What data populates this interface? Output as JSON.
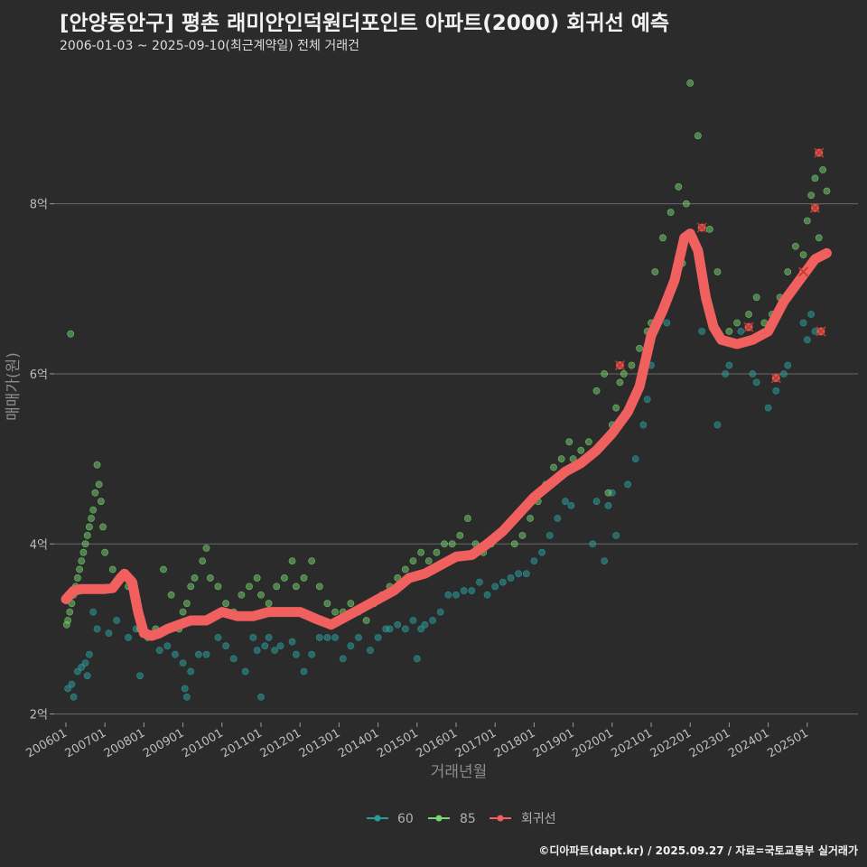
{
  "title": "[안양동안구] 평촌 래미안인덕원더포인트 아파트(2000) 회귀선 예측",
  "subtitle": "2006-01-03 ~ 2025-09-10(최근계약일) 전체 거래건",
  "caption": "©디아파트(dapt.kr) / 2025.09.27 / 자료=국토교통부 실거래가",
  "colors": {
    "background": "#2b2b2c",
    "grid": "#6a6a6a",
    "s60": "#2a9d9a",
    "s85": "#77d66f",
    "regression": "#f0605f",
    "outlier": "#c0392b"
  },
  "chart_data": {
    "type": "scatter",
    "xlabel": "거래년월",
    "ylabel": "매매가(원)",
    "x_range": [
      2005.7,
      2026.3
    ],
    "ylim": [
      1.9,
      9.6
    ],
    "y_ticks": [
      2,
      4,
      6,
      8
    ],
    "y_tick_labels": [
      "2억",
      "4억",
      "6억",
      "8억"
    ],
    "x_ticks": [
      2006,
      2007,
      2008,
      2009,
      2010,
      2011,
      2012,
      2013,
      2014,
      2015,
      2016,
      2017,
      2018,
      2019,
      2020,
      2021,
      2022,
      2023,
      2024,
      2025
    ],
    "x_tick_labels": [
      "200601",
      "200701",
      "200801",
      "200901",
      "201001",
      "201101",
      "201201",
      "201301",
      "201401",
      "201501",
      "201601",
      "201701",
      "201801",
      "201901",
      "202001",
      "202101",
      "202201",
      "202301",
      "202401",
      "202501"
    ],
    "grid": true,
    "legend_position": "bottom",
    "legend": [
      "60",
      "85",
      "회귀선"
    ],
    "series": [
      {
        "name": "60",
        "points": [
          [
            2006.05,
            2.3
          ],
          [
            2006.15,
            2.35
          ],
          [
            2006.2,
            2.2
          ],
          [
            2006.3,
            2.5
          ],
          [
            2006.4,
            2.55
          ],
          [
            2006.5,
            2.6
          ],
          [
            2006.55,
            2.45
          ],
          [
            2006.6,
            2.7
          ],
          [
            2006.7,
            3.2
          ],
          [
            2006.8,
            3.0
          ],
          [
            2007.1,
            2.95
          ],
          [
            2007.3,
            3.1
          ],
          [
            2007.6,
            2.9
          ],
          [
            2007.8,
            3.0
          ],
          [
            2007.9,
            2.45
          ],
          [
            2008.4,
            2.75
          ],
          [
            2008.6,
            2.8
          ],
          [
            2008.8,
            2.7
          ],
          [
            2009.0,
            2.6
          ],
          [
            2009.05,
            2.3
          ],
          [
            2009.1,
            2.2
          ],
          [
            2009.2,
            2.5
          ],
          [
            2009.4,
            2.7
          ],
          [
            2009.6,
            2.7
          ],
          [
            2009.9,
            2.9
          ],
          [
            2010.1,
            2.8
          ],
          [
            2010.3,
            2.65
          ],
          [
            2010.6,
            2.5
          ],
          [
            2010.8,
            2.9
          ],
          [
            2010.9,
            2.75
          ],
          [
            2011.0,
            2.2
          ],
          [
            2011.1,
            2.8
          ],
          [
            2011.2,
            2.9
          ],
          [
            2011.35,
            2.75
          ],
          [
            2011.5,
            2.8
          ],
          [
            2011.8,
            2.85
          ],
          [
            2011.9,
            2.7
          ],
          [
            2012.1,
            2.5
          ],
          [
            2012.3,
            2.7
          ],
          [
            2012.5,
            2.9
          ],
          [
            2012.7,
            2.9
          ],
          [
            2012.9,
            2.9
          ],
          [
            2013.1,
            2.65
          ],
          [
            2013.3,
            2.8
          ],
          [
            2013.5,
            2.9
          ],
          [
            2013.8,
            2.75
          ],
          [
            2014.0,
            2.9
          ],
          [
            2014.2,
            3.0
          ],
          [
            2014.3,
            3.0
          ],
          [
            2014.5,
            3.05
          ],
          [
            2014.7,
            3.0
          ],
          [
            2014.9,
            3.1
          ],
          [
            2015.0,
            2.65
          ],
          [
            2015.1,
            3.0
          ],
          [
            2015.2,
            3.05
          ],
          [
            2015.4,
            3.1
          ],
          [
            2015.6,
            3.2
          ],
          [
            2015.8,
            3.4
          ],
          [
            2016.0,
            3.4
          ],
          [
            2016.2,
            3.45
          ],
          [
            2016.4,
            3.45
          ],
          [
            2016.6,
            3.55
          ],
          [
            2016.8,
            3.4
          ],
          [
            2017.0,
            3.5
          ],
          [
            2017.2,
            3.55
          ],
          [
            2017.4,
            3.6
          ],
          [
            2017.6,
            3.65
          ],
          [
            2017.8,
            3.65
          ],
          [
            2018.0,
            3.8
          ],
          [
            2018.2,
            3.9
          ],
          [
            2018.4,
            4.1
          ],
          [
            2018.6,
            4.3
          ],
          [
            2018.8,
            4.5
          ],
          [
            2018.95,
            4.45
          ],
          [
            2019.5,
            4.0
          ],
          [
            2019.6,
            4.5
          ],
          [
            2019.8,
            3.8
          ],
          [
            2019.9,
            4.45
          ],
          [
            2020.0,
            4.6
          ],
          [
            2020.1,
            4.1
          ],
          [
            2020.4,
            4.7
          ],
          [
            2020.6,
            5.0
          ],
          [
            2020.8,
            5.4
          ],
          [
            2020.9,
            5.7
          ],
          [
            2021.0,
            6.1
          ],
          [
            2021.4,
            6.6
          ],
          [
            2022.3,
            6.5
          ],
          [
            2022.7,
            5.4
          ],
          [
            2022.9,
            6.0
          ],
          [
            2023.0,
            6.1
          ],
          [
            2023.3,
            6.5
          ],
          [
            2023.6,
            6.0
          ],
          [
            2023.7,
            5.9
          ],
          [
            2024.0,
            5.6
          ],
          [
            2024.2,
            5.8
          ],
          [
            2024.4,
            6.0
          ],
          [
            2024.5,
            6.1
          ],
          [
            2024.9,
            6.6
          ],
          [
            2025.0,
            6.4
          ],
          [
            2025.1,
            6.7
          ],
          [
            2025.2,
            6.5
          ]
        ]
      },
      {
        "name": "85",
        "points": [
          [
            2006.02,
            3.05
          ],
          [
            2006.05,
            3.1
          ],
          [
            2006.1,
            3.2
          ],
          [
            2006.12,
            6.47
          ],
          [
            2006.15,
            3.3
          ],
          [
            2006.2,
            3.4
          ],
          [
            2006.25,
            3.5
          ],
          [
            2006.3,
            3.6
          ],
          [
            2006.35,
            3.7
          ],
          [
            2006.4,
            3.8
          ],
          [
            2006.45,
            3.9
          ],
          [
            2006.5,
            4.0
          ],
          [
            2006.55,
            4.1
          ],
          [
            2006.6,
            4.2
          ],
          [
            2006.65,
            4.3
          ],
          [
            2006.7,
            4.4
          ],
          [
            2006.75,
            4.6
          ],
          [
            2006.8,
            4.93
          ],
          [
            2006.85,
            4.7
          ],
          [
            2006.9,
            4.5
          ],
          [
            2006.95,
            4.2
          ],
          [
            2007.0,
            3.9
          ],
          [
            2007.2,
            3.7
          ],
          [
            2007.4,
            3.6
          ],
          [
            2007.6,
            3.5
          ],
          [
            2007.8,
            3.3
          ],
          [
            2007.9,
            3.0
          ],
          [
            2008.1,
            2.9
          ],
          [
            2008.3,
            3.0
          ],
          [
            2008.5,
            3.7
          ],
          [
            2008.7,
            3.4
          ],
          [
            2008.9,
            3.0
          ],
          [
            2009.0,
            3.2
          ],
          [
            2009.1,
            3.3
          ],
          [
            2009.2,
            3.5
          ],
          [
            2009.3,
            3.6
          ],
          [
            2009.5,
            3.8
          ],
          [
            2009.6,
            3.95
          ],
          [
            2009.7,
            3.6
          ],
          [
            2009.9,
            3.5
          ],
          [
            2010.1,
            3.3
          ],
          [
            2010.3,
            3.2
          ],
          [
            2010.5,
            3.4
          ],
          [
            2010.7,
            3.5
          ],
          [
            2010.9,
            3.6
          ],
          [
            2011.0,
            3.4
          ],
          [
            2011.2,
            3.3
          ],
          [
            2011.4,
            3.5
          ],
          [
            2011.6,
            3.6
          ],
          [
            2011.8,
            3.8
          ],
          [
            2011.9,
            3.5
          ],
          [
            2012.1,
            3.6
          ],
          [
            2012.3,
            3.8
          ],
          [
            2012.5,
            3.5
          ],
          [
            2012.7,
            3.3
          ],
          [
            2012.9,
            3.2
          ],
          [
            2013.1,
            3.2
          ],
          [
            2013.3,
            3.3
          ],
          [
            2013.5,
            3.2
          ],
          [
            2013.7,
            3.1
          ],
          [
            2013.9,
            3.3
          ],
          [
            2014.1,
            3.4
          ],
          [
            2014.3,
            3.5
          ],
          [
            2014.5,
            3.6
          ],
          [
            2014.7,
            3.7
          ],
          [
            2014.9,
            3.8
          ],
          [
            2015.1,
            3.9
          ],
          [
            2015.3,
            3.8
          ],
          [
            2015.5,
            3.9
          ],
          [
            2015.7,
            4.0
          ],
          [
            2015.9,
            4.0
          ],
          [
            2016.1,
            4.1
          ],
          [
            2016.3,
            4.3
          ],
          [
            2016.5,
            4.0
          ],
          [
            2016.7,
            3.9
          ],
          [
            2016.9,
            4.0
          ],
          [
            2017.1,
            4.1
          ],
          [
            2017.3,
            4.2
          ],
          [
            2017.5,
            4.0
          ],
          [
            2017.7,
            4.1
          ],
          [
            2017.9,
            4.3
          ],
          [
            2018.1,
            4.5
          ],
          [
            2018.3,
            4.7
          ],
          [
            2018.5,
            4.9
          ],
          [
            2018.7,
            5.0
          ],
          [
            2018.9,
            5.2
          ],
          [
            2019.0,
            5.0
          ],
          [
            2019.2,
            5.1
          ],
          [
            2019.4,
            5.2
          ],
          [
            2019.6,
            5.8
          ],
          [
            2019.8,
            6.0
          ],
          [
            2019.9,
            4.6
          ],
          [
            2020.0,
            5.4
          ],
          [
            2020.1,
            5.6
          ],
          [
            2020.2,
            5.9
          ],
          [
            2020.3,
            6.0
          ],
          [
            2020.5,
            6.1
          ],
          [
            2020.7,
            6.3
          ],
          [
            2020.9,
            6.5
          ],
          [
            2021.0,
            6.6
          ],
          [
            2021.1,
            7.2
          ],
          [
            2021.3,
            7.6
          ],
          [
            2021.5,
            7.9
          ],
          [
            2021.7,
            8.2
          ],
          [
            2021.8,
            7.3
          ],
          [
            2021.9,
            8.0
          ],
          [
            2022.0,
            9.42
          ],
          [
            2022.2,
            8.8
          ],
          [
            2022.5,
            7.7
          ],
          [
            2022.7,
            7.2
          ],
          [
            2023.0,
            6.5
          ],
          [
            2023.2,
            6.6
          ],
          [
            2023.5,
            6.7
          ],
          [
            2023.7,
            6.9
          ],
          [
            2023.9,
            6.6
          ],
          [
            2024.1,
            6.7
          ],
          [
            2024.3,
            6.9
          ],
          [
            2024.5,
            7.2
          ],
          [
            2024.7,
            7.5
          ],
          [
            2024.9,
            7.4
          ],
          [
            2025.0,
            7.8
          ],
          [
            2025.1,
            8.1
          ],
          [
            2025.2,
            8.3
          ],
          [
            2025.3,
            7.6
          ],
          [
            2025.4,
            8.4
          ],
          [
            2025.5,
            8.15
          ]
        ]
      }
    ],
    "regression": [
      [
        2006.0,
        3.35
      ],
      [
        2006.2,
        3.45
      ],
      [
        2006.4,
        3.47
      ],
      [
        2006.6,
        3.47
      ],
      [
        2006.8,
        3.47
      ],
      [
        2007.0,
        3.47
      ],
      [
        2007.2,
        3.48
      ],
      [
        2007.4,
        3.6
      ],
      [
        2007.5,
        3.65
      ],
      [
        2007.7,
        3.55
      ],
      [
        2007.85,
        3.2
      ],
      [
        2008.0,
        2.95
      ],
      [
        2008.2,
        2.92
      ],
      [
        2008.4,
        2.95
      ],
      [
        2008.6,
        3.0
      ],
      [
        2008.9,
        3.05
      ],
      [
        2009.2,
        3.1
      ],
      [
        2009.6,
        3.1
      ],
      [
        2010.0,
        3.2
      ],
      [
        2010.4,
        3.15
      ],
      [
        2010.8,
        3.15
      ],
      [
        2011.2,
        3.2
      ],
      [
        2011.6,
        3.2
      ],
      [
        2012.0,
        3.2
      ],
      [
        2012.4,
        3.12
      ],
      [
        2012.8,
        3.05
      ],
      [
        2013.2,
        3.15
      ],
      [
        2013.6,
        3.25
      ],
      [
        2014.0,
        3.35
      ],
      [
        2014.4,
        3.45
      ],
      [
        2014.8,
        3.6
      ],
      [
        2015.2,
        3.65
      ],
      [
        2015.6,
        3.75
      ],
      [
        2016.0,
        3.85
      ],
      [
        2016.4,
        3.87
      ],
      [
        2016.8,
        4.0
      ],
      [
        2017.2,
        4.15
      ],
      [
        2017.6,
        4.35
      ],
      [
        2018.0,
        4.55
      ],
      [
        2018.4,
        4.7
      ],
      [
        2018.8,
        4.85
      ],
      [
        2019.2,
        4.95
      ],
      [
        2019.6,
        5.1
      ],
      [
        2020.0,
        5.3
      ],
      [
        2020.4,
        5.55
      ],
      [
        2020.7,
        5.85
      ],
      [
        2021.0,
        6.45
      ],
      [
        2021.3,
        6.75
      ],
      [
        2021.6,
        7.1
      ],
      [
        2021.85,
        7.6
      ],
      [
        2022.0,
        7.65
      ],
      [
        2022.2,
        7.45
      ],
      [
        2022.4,
        6.9
      ],
      [
        2022.6,
        6.55
      ],
      [
        2022.8,
        6.4
      ],
      [
        2023.2,
        6.35
      ],
      [
        2023.6,
        6.4
      ],
      [
        2024.0,
        6.5
      ],
      [
        2024.4,
        6.85
      ],
      [
        2024.8,
        7.1
      ],
      [
        2025.2,
        7.35
      ],
      [
        2025.5,
        7.42
      ]
    ],
    "outliers": [
      [
        2020.2,
        6.1
      ],
      [
        2022.3,
        7.72
      ],
      [
        2023.5,
        6.55
      ],
      [
        2024.2,
        5.95
      ],
      [
        2024.9,
        7.2
      ],
      [
        2025.2,
        7.95
      ],
      [
        2025.3,
        8.6
      ],
      [
        2025.35,
        6.5
      ]
    ]
  }
}
